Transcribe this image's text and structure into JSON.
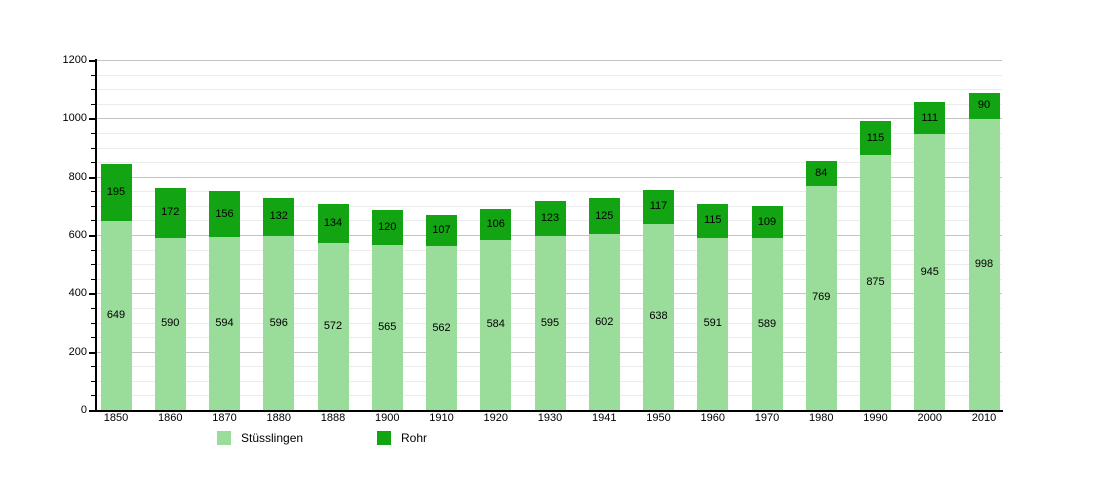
{
  "chart_data": {
    "type": "bar",
    "stacked": true,
    "title": "",
    "xlabel": "",
    "ylabel": "",
    "categories": [
      "1850",
      "1860",
      "1870",
      "1880",
      "1888",
      "1900",
      "1910",
      "1920",
      "1930",
      "1941",
      "1950",
      "1960",
      "1970",
      "1980",
      "1990",
      "2000",
      "2010"
    ],
    "series": [
      {
        "name": "Stüsslingen",
        "color": "#9adc9a",
        "values": [
          649,
          590,
          594,
          596,
          572,
          565,
          562,
          584,
          595,
          602,
          638,
          591,
          589,
          769,
          875,
          945,
          998
        ]
      },
      {
        "name": "Rohr",
        "color": "#13a413",
        "values": [
          195,
          172,
          156,
          132,
          134,
          120,
          107,
          106,
          123,
          125,
          117,
          115,
          109,
          84,
          115,
          111,
          90
        ]
      }
    ],
    "ylim": [
      0,
      1200
    ],
    "y_major_step": 200,
    "y_minor_step": 50,
    "y_tick_labels": [
      "0",
      "200",
      "400",
      "600",
      "800",
      "1000",
      "1200"
    ],
    "grid": true,
    "legend_position": "bottom",
    "data_labels_visible": true
  },
  "legend": {
    "items": [
      {
        "label": "Stüsslingen",
        "color": "#9adc9a"
      },
      {
        "label": "Rohr",
        "color": "#13a413"
      }
    ]
  },
  "colors": {
    "background": "#ffffff",
    "axis": "#000000",
    "gridline_major": "#c3c3c3",
    "gridline_minor": "#ebebeb",
    "label_text": "#000000"
  }
}
